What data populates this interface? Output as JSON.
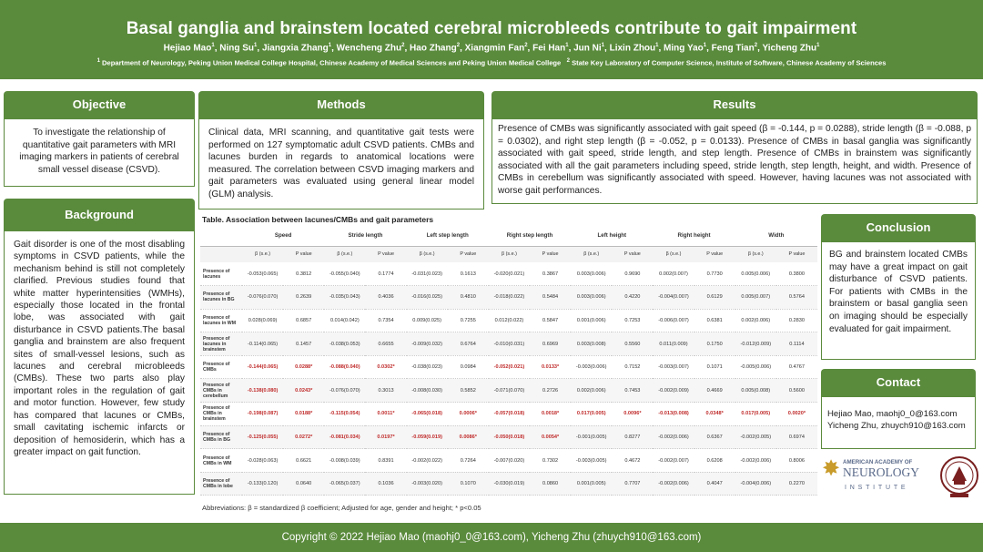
{
  "header": {
    "title": "Basal ganglia and brainstem located cerebral microbleeds contribute to gait impairment",
    "authors": [
      {
        "name": "Hejiao Mao",
        "sup": "1"
      },
      {
        "name": "Ning Su",
        "sup": "1"
      },
      {
        "name": "Jiangxia Zhang",
        "sup": "1"
      },
      {
        "name": "Wencheng Zhu",
        "sup": "2"
      },
      {
        "name": "Hao Zhang",
        "sup": "2"
      },
      {
        "name": "Xiangmin Fan",
        "sup": "2"
      },
      {
        "name": "Fei Han",
        "sup": "1"
      },
      {
        "name": "Jun Ni",
        "sup": "1"
      },
      {
        "name": "Lixin Zhou",
        "sup": "1"
      },
      {
        "name": "Ming Yao",
        "sup": "1"
      },
      {
        "name": "Feng Tian",
        "sup": "2"
      },
      {
        "name": "Yicheng Zhu",
        "sup": "1"
      }
    ],
    "affil1_sup": "1",
    "affil1": "Department of Neurology, Peking Union Medical College Hospital, Chinese Academy of Medical Sciences and Peking Union Medical College",
    "affil2_sup": "2",
    "affil2": "State Key Laboratory of Computer Science, Institute of Software, Chinese Academy of Sciences"
  },
  "objective": {
    "heading": "Objective",
    "text": "To investigate the relationship of quantitative gait parameters with MRI imaging markers in patients of cerebral small vessel disease (CSVD)."
  },
  "methods": {
    "heading": "Methods",
    "text": "Clinical data, MRI scanning, and quantitative gait tests were performed on 127 symptomatic adult CSVD patients. CMBs and lacunes burden in regards to anatomical locations were measured. The correlation between CSVD imaging markers and gait parameters was evaluated using general linear model (GLM) analysis."
  },
  "results": {
    "heading": "Results",
    "text": "Presence of CMBs was significantly associated with gait speed (β = -0.144, p = 0.0288), stride length (β = -0.088, p = 0.0302), and right step length (β = -0.052, p = 0.0133). Presence of CMBs in basal ganglia was significantly associated with gait speed, stride length, and step length. Presence of CMBs in brainstem was significantly associated with all the gait parameters including speed, stride length, step length, height, and width. Presence of CMBs in cerebellum was significantly associated with speed. However, having lacunes was not associated with worse gait performances."
  },
  "background": {
    "heading": "Background",
    "text": "Gait disorder is one of the most disabling symptoms in CSVD patients, while the mechanism behind is still not completely clarified. Previous studies found that white matter hyperintensities (WMHs), especially those located in the frontal lobe, was associated with gait disturbance in CSVD patients.The basal ganglia and brainstem are also frequent sites of small-vessel lesions, such as lacunes and cerebral microbleeds (CMBs). These two parts also play important roles in the regulation of gait and motor function. However, few study has compared that lacunes or CMBs, small cavitating ischemic infarcts or deposition of hemosiderin, which has a greater impact on gait function."
  },
  "conclusion": {
    "heading": "Conclusion",
    "text": "BG and brainstem located CMBs may have a great impact on gait disturbance of CSVD patients. For patients with CMBs in the brainstem or basal ganglia seen on imaging should be especially evaluated for gait impairment."
  },
  "contact": {
    "heading": "Contact",
    "line1": "Hejiao Mao, maohj0_0@163.com",
    "line2": "Yicheng Zhu, zhuych910@163.com"
  },
  "logos": {
    "aan_line1": "AMERICAN ACADEMY OF",
    "aan_line2": "NEUROLOGY",
    "aan_line3": "INSTITUTE",
    "aan_color": "#5a6a8a",
    "pumch_icon": "pumch-seal-icon"
  },
  "table": {
    "title": "Table. Association between lacunes/CMBs and gait parameters",
    "groups": [
      "Speed",
      "Stride length",
      "Left step length",
      "Right step length",
      "Left height",
      "Right height",
      "Width"
    ],
    "subheaders": [
      "β (s.e.)",
      "P value"
    ],
    "highlight_color": "#c02a2a",
    "rows": [
      {
        "label": "Presence of lacunes",
        "cells": [
          [
            "-0.053(0.065)",
            "0.3812",
            false
          ],
          [
            "-0.055(0.040)",
            "0.1774",
            false
          ],
          [
            "-0.031(0.023)",
            "0.1613",
            false
          ],
          [
            "-0.020(0.021)",
            "0.3867",
            false
          ],
          [
            "0.003(0.006)",
            "0.9690",
            false
          ],
          [
            "0.002(0.007)",
            "0.7730",
            false
          ],
          [
            "0.005(0.006)",
            "0.3800",
            false
          ]
        ]
      },
      {
        "label": "Presence of lacunes in BG",
        "cells": [
          [
            "-0.076(0.070)",
            "0.2639",
            false
          ],
          [
            "-0.035(0.043)",
            "0.4036",
            false
          ],
          [
            "-0.016(0.025)",
            "0.4810",
            false
          ],
          [
            "-0.018(0.022)",
            "0.5484",
            false
          ],
          [
            "0.003(0.006)",
            "0.4220",
            false
          ],
          [
            "-0.004(0.007)",
            "0.6129",
            false
          ],
          [
            "0.005(0.007)",
            "0.5764",
            false
          ]
        ]
      },
      {
        "label": "Presence of lacunes in WM",
        "cells": [
          [
            "0.028(0.069)",
            "0.6857",
            false
          ],
          [
            "0.014(0.042)",
            "0.7354",
            false
          ],
          [
            "0.009(0.025)",
            "0.7255",
            false
          ],
          [
            "0.012(0.022)",
            "0.5847",
            false
          ],
          [
            "0.001(0.006)",
            "0.7253",
            false
          ],
          [
            "-0.006(0.007)",
            "0.6381",
            false
          ],
          [
            "0.002(0.006)",
            "0.2830",
            false
          ]
        ]
      },
      {
        "label": "Presence of lacunes in brainstem",
        "cells": [
          [
            "-0.114(0.065)",
            "0.1457",
            false
          ],
          [
            "-0.038(0.053)",
            "0.6655",
            false
          ],
          [
            "-0.009(0.032)",
            "0.6764",
            false
          ],
          [
            "-0.010(0.031)",
            "0.6969",
            false
          ],
          [
            "0.003(0.008)",
            "0.5560",
            false
          ],
          [
            "0.011(0.009)",
            "0.1750",
            false
          ],
          [
            "-0.012(0.009)",
            "0.1114",
            false
          ]
        ]
      },
      {
        "label": "Presence of CMBs",
        "cells": [
          [
            "-0.144(0.065)",
            "0.0288*",
            true
          ],
          [
            "-0.088(0.040)",
            "0.0302*",
            true
          ],
          [
            "-0.038(0.023)",
            "0.0984",
            false
          ],
          [
            "-0.052(0.021)",
            "0.0133*",
            true
          ],
          [
            "-0.003(0.006)",
            "0.7152",
            false
          ],
          [
            "-0.003(0.007)",
            "0.1071",
            false
          ],
          [
            "-0.005(0.006)",
            "0.4767",
            false
          ]
        ]
      },
      {
        "label": "Presence of CMBs in cerebellum",
        "cells": [
          [
            "-0.138(0.080)",
            "0.0243*",
            true
          ],
          [
            "-0.076(0.070)",
            "0.3013",
            false
          ],
          [
            "-0.008(0.030)",
            "0.5852",
            false
          ],
          [
            "-0.071(0.070)",
            "0.2726",
            false
          ],
          [
            "0.002(0.006)",
            "0.7453",
            false
          ],
          [
            "-0.002(0.009)",
            "0.4669",
            false
          ],
          [
            "0.005(0.008)",
            "0.5600",
            false
          ]
        ]
      },
      {
        "label": "Presence of CMBs in brainstem",
        "cells": [
          [
            "-0.198(0.087)",
            "0.0188*",
            true
          ],
          [
            "-0.115(0.054)",
            "0.0011*",
            true
          ],
          [
            "-0.065(0.018)",
            "0.0006*",
            true
          ],
          [
            "-0.057(0.018)",
            "0.0018*",
            true
          ],
          [
            "0.017(0.005)",
            "0.0096*",
            true
          ],
          [
            "-0.013(0.008)",
            "0.0348*",
            true
          ],
          [
            "0.017(0.005)",
            "0.0020*",
            true
          ]
        ]
      },
      {
        "label": "Presence of CMBs in BG",
        "cells": [
          [
            "-0.125(0.055)",
            "0.0272*",
            true
          ],
          [
            "-0.081(0.034)",
            "0.0197*",
            true
          ],
          [
            "-0.059(0.019)",
            "0.0086*",
            true
          ],
          [
            "-0.050(0.018)",
            "0.0054*",
            true
          ],
          [
            "-0.001(0.005)",
            "0.8277",
            false
          ],
          [
            "-0.002(0.006)",
            "0.6367",
            false
          ],
          [
            "-0.002(0.005)",
            "0.6974",
            false
          ]
        ]
      },
      {
        "label": "Presence of CMBs in WM",
        "cells": [
          [
            "-0.028(0.063)",
            "0.6621",
            false
          ],
          [
            "-0.008(0.039)",
            "0.8391",
            false
          ],
          [
            "-0.002(0.022)",
            "0.7264",
            false
          ],
          [
            "-0.007(0.020)",
            "0.7302",
            false
          ],
          [
            "-0.003(0.005)",
            "0.4672",
            false
          ],
          [
            "-0.002(0.007)",
            "0.6208",
            false
          ],
          [
            "-0.002(0.006)",
            "0.8006",
            false
          ]
        ]
      },
      {
        "label": "Presence of CMBs in lobe",
        "cells": [
          [
            "-0.133(0.120)",
            "0.0640",
            false
          ],
          [
            "-0.065(0.037)",
            "0.1036",
            false
          ],
          [
            "-0.003(0.020)",
            "0.1070",
            false
          ],
          [
            "-0.030(0.019)",
            "0.0860",
            false
          ],
          [
            "0.001(0.005)",
            "0.7707",
            false
          ],
          [
            "-0.002(0.006)",
            "0.4047",
            false
          ],
          [
            "-0.004(0.006)",
            "0.2270",
            false
          ]
        ]
      }
    ],
    "abbreviations": "Abbreviations: β = standardized β coefficient; Adjusted for age, gender and height; * p<0.05"
  },
  "footer": {
    "text": "Copyright © 2022 Hejiao Mao (maohj0_0@163.com), Yicheng Zhu (zhuych910@163.com)"
  },
  "colors": {
    "primary_green": "#5a8a3c",
    "gold": "#c89b2a",
    "pumch_red": "#7a2020"
  }
}
